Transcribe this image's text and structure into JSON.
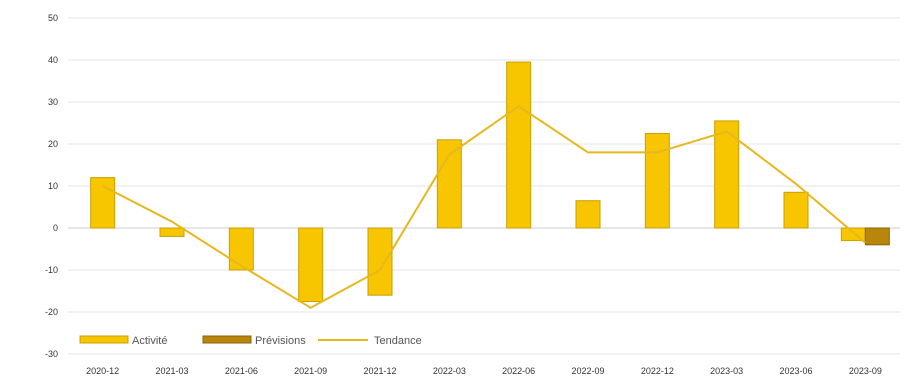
{
  "chart_data": {
    "type": "bar",
    "categories": [
      "2020-12",
      "2021-03",
      "2021-06",
      "2021-09",
      "2021-12",
      "2022-03",
      "2022-06",
      "2022-09",
      "2022-12",
      "2023-03",
      "2023-06",
      "2023-09"
    ],
    "series": [
      {
        "name": "Activité",
        "values": [
          12,
          -2,
          -10,
          -17.5,
          -16,
          21,
          39.5,
          6.5,
          22.5,
          25.5,
          8.5,
          -3
        ]
      },
      {
        "name": "Prévisions",
        "values": [
          null,
          null,
          null,
          null,
          null,
          null,
          null,
          null,
          null,
          null,
          null,
          -4
        ]
      },
      {
        "name": "Tendance",
        "type": "line",
        "values": [
          10,
          1.5,
          -9,
          -19,
          -10,
          17.5,
          29,
          18,
          18,
          23,
          10.5,
          -3.5
        ]
      }
    ],
    "ylim": [
      -30,
      50
    ],
    "yticks": [
      -30,
      -20,
      -10,
      0,
      10,
      20,
      30,
      40,
      50
    ],
    "grid": true,
    "legend_position": "bottom-left",
    "colors": {
      "activite": "#F7C600",
      "activite_edge": "#C9A000",
      "previsions": "#B8860B",
      "tendance": "#E6B81E"
    }
  }
}
